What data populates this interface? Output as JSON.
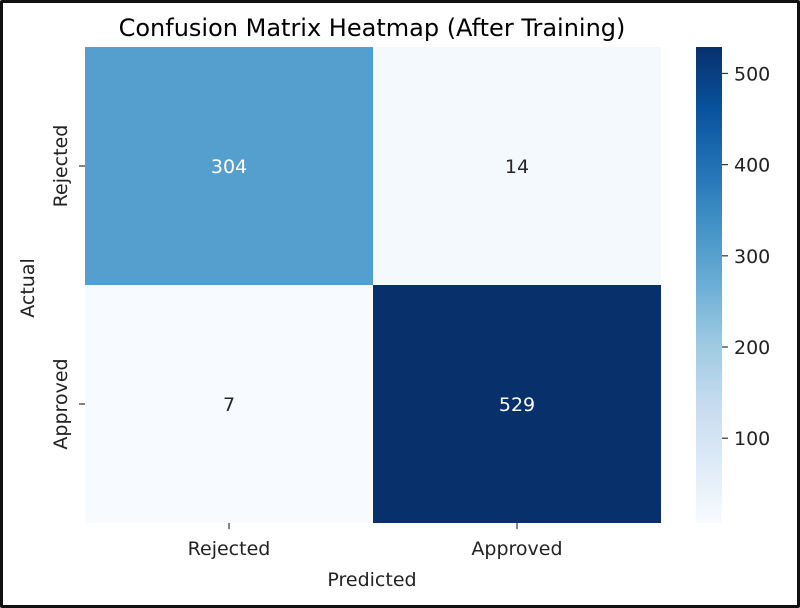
{
  "chart_data": {
    "type": "heatmap",
    "title": "Confusion Matrix Heatmap (After Training)",
    "xlabel": "Predicted",
    "ylabel": "Actual",
    "x_categories": [
      "Rejected",
      "Approved"
    ],
    "y_categories": [
      "Rejected",
      "Approved"
    ],
    "values": [
      [
        304,
        14
      ],
      [
        7,
        529
      ]
    ],
    "colormap": "Blues",
    "colorbar": {
      "min": 7,
      "max": 529,
      "ticks": [
        100,
        200,
        300,
        400,
        500
      ]
    },
    "colors": {
      "low": "#f7fbff",
      "high": "#08306b"
    }
  }
}
